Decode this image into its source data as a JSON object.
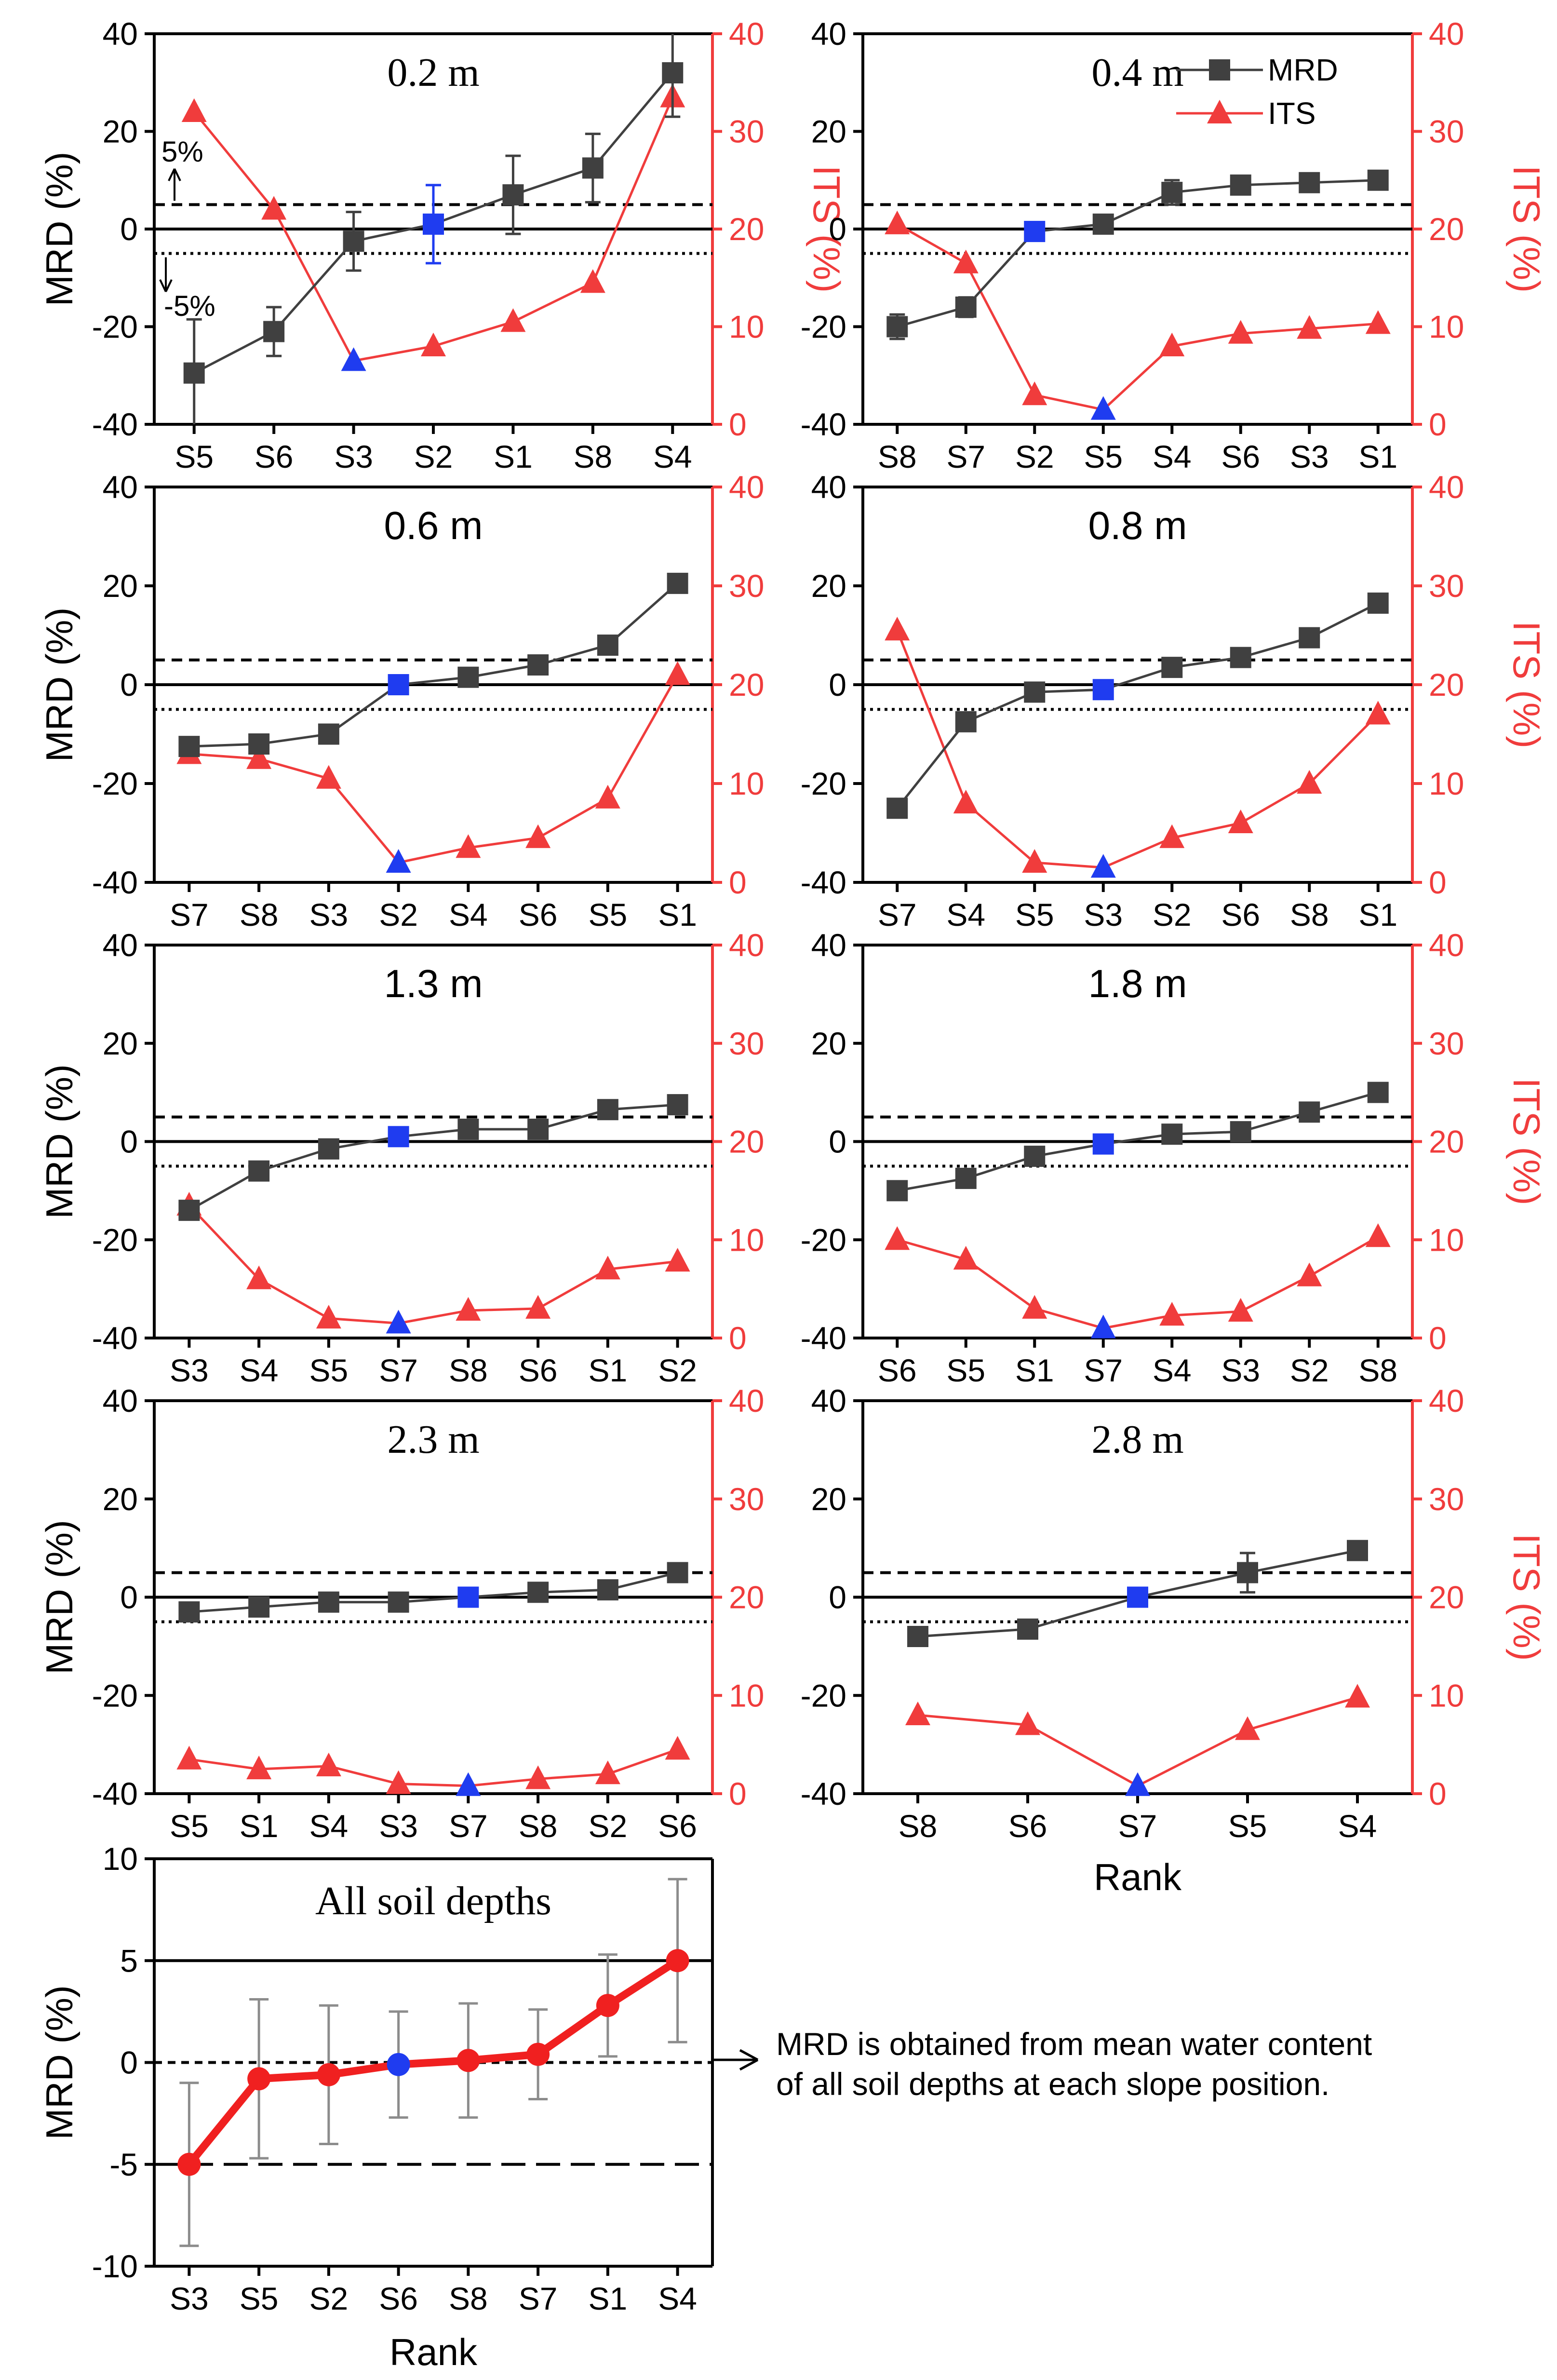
{
  "figure": {
    "legend": {
      "mrd_label": "MRD",
      "its_label": "ITS"
    },
    "annotations": {
      "upper_threshold": "5%",
      "lower_threshold": "-5%"
    },
    "note": {
      "line1": "MRD is obtained from mean water content",
      "line2": "of all soil depths at each slope position."
    }
  },
  "colors": {
    "mrd_line": "#404040",
    "its_line": "#f03c3c",
    "highlight": "#1f3cf0",
    "all_depths_line": "#f02020",
    "error_bar_gray": "#8c8c8c"
  },
  "chart_data": [
    {
      "type": "line",
      "title": "0.2 m",
      "title_style": "serif",
      "categories": [
        "S5",
        "S6",
        "S3",
        "S2",
        "S1",
        "S8",
        "S4"
      ],
      "highlight_index": 3,
      "its_highlight_index": 2,
      "ylabel": "MRD (%)",
      "y2label": "ITS (%)",
      "xlabel": "",
      "ylim": [
        -40,
        40
      ],
      "y2lim": [
        0,
        40
      ],
      "yticks": [
        "40",
        "20",
        "0",
        "-20",
        "-40"
      ],
      "y2ticks": [
        "40",
        "30",
        "20",
        "10",
        "0"
      ],
      "series": [
        {
          "name": "MRD",
          "values": [
            -29.5,
            -21,
            -2.5,
            1,
            7,
            12.5,
            32
          ],
          "errors": [
            11,
            5,
            6,
            8,
            8,
            7,
            9
          ]
        },
        {
          "name": "ITS",
          "values": [
            32,
            22,
            6.5,
            8,
            10.5,
            14.5,
            33.5
          ]
        }
      ],
      "thresholds": [
        5,
        -5
      ],
      "show_legend": false,
      "show_threshold_annotations": true
    },
    {
      "type": "line",
      "title": "0.4 m",
      "title_style": "serif",
      "categories": [
        "S8",
        "S7",
        "S2",
        "S5",
        "S4",
        "S6",
        "S3",
        "S1"
      ],
      "highlight_index": 2,
      "its_highlight_index": 3,
      "ylabel": "",
      "y2label": "ITS (%)",
      "xlabel": "",
      "ylim": [
        -40,
        40
      ],
      "y2lim": [
        0,
        40
      ],
      "yticks": [
        "40",
        "20",
        "0",
        "-20",
        "-40"
      ],
      "y2ticks": [
        "40",
        "30",
        "20",
        "10",
        "0"
      ],
      "series": [
        {
          "name": "MRD",
          "values": [
            -20,
            -16,
            -0.5,
            1,
            7.5,
            9,
            9.5,
            10
          ],
          "errors": [
            2.5,
            2,
            0,
            0,
            2.5,
            0,
            0,
            0
          ]
        },
        {
          "name": "ITS",
          "values": [
            20.5,
            16.5,
            3,
            1.5,
            8,
            9.3,
            9.8,
            10.3
          ]
        }
      ],
      "thresholds": [
        5,
        -5
      ],
      "show_legend": true,
      "show_threshold_annotations": false
    },
    {
      "type": "line",
      "title": "0.6 m",
      "title_style": "sans",
      "categories": [
        "S7",
        "S8",
        "S3",
        "S2",
        "S4",
        "S6",
        "S5",
        "S1"
      ],
      "highlight_index": 3,
      "its_highlight_index": 3,
      "ylabel": "MRD (%)",
      "y2label": "",
      "xlabel": "",
      "ylim": [
        -40,
        40
      ],
      "y2lim": [
        0,
        40
      ],
      "yticks": [
        "40",
        "20",
        "0",
        "-20",
        "-40"
      ],
      "y2ticks": [
        "40",
        "30",
        "20",
        "10",
        "0"
      ],
      "series": [
        {
          "name": "MRD",
          "values": [
            -12.5,
            -12,
            -10,
            0,
            1.5,
            4,
            8,
            20.5
          ],
          "errors": [
            1.5,
            0,
            0,
            0,
            0,
            0,
            0,
            0
          ]
        },
        {
          "name": "ITS",
          "values": [
            13,
            12.5,
            10.5,
            2,
            3.5,
            4.5,
            8.5,
            21
          ]
        }
      ],
      "thresholds": [
        5,
        -5
      ],
      "show_legend": false,
      "show_threshold_annotations": false
    },
    {
      "type": "line",
      "title": "0.8 m",
      "title_style": "sans",
      "categories": [
        "S7",
        "S4",
        "S5",
        "S3",
        "S2",
        "S6",
        "S8",
        "S1"
      ],
      "highlight_index": 3,
      "its_highlight_index": 3,
      "ylabel": "",
      "y2label": "ITS (%)",
      "xlabel": "",
      "ylim": [
        -40,
        40
      ],
      "y2lim": [
        0,
        40
      ],
      "yticks": [
        "40",
        "20",
        "0",
        "-20",
        "-40"
      ],
      "y2ticks": [
        "40",
        "30",
        "20",
        "10",
        "0"
      ],
      "series": [
        {
          "name": "MRD",
          "values": [
            -25,
            -7.5,
            -1.5,
            -1,
            3.5,
            5.5,
            9.5,
            16.5
          ],
          "errors": [
            0,
            0,
            0,
            0,
            0,
            0,
            0,
            0
          ]
        },
        {
          "name": "ITS",
          "values": [
            25.5,
            8,
            2,
            1.5,
            4.5,
            6,
            10,
            17
          ]
        }
      ],
      "thresholds": [
        5,
        -5
      ],
      "show_legend": false,
      "show_threshold_annotations": false
    },
    {
      "type": "line",
      "title": "1.3 m",
      "title_style": "sans",
      "categories": [
        "S3",
        "S4",
        "S5",
        "S7",
        "S8",
        "S6",
        "S1",
        "S2"
      ],
      "highlight_index": 3,
      "its_highlight_index": 3,
      "ylabel": "MRD (%)",
      "y2label": "",
      "xlabel": "",
      "ylim": [
        -40,
        40
      ],
      "y2lim": [
        0,
        40
      ],
      "yticks": [
        "40",
        "20",
        "0",
        "-20",
        "-40"
      ],
      "y2ticks": [
        "40",
        "30",
        "20",
        "10",
        "0"
      ],
      "series": [
        {
          "name": "MRD",
          "values": [
            -14,
            -6,
            -1.5,
            1,
            2.5,
            2.5,
            6.5,
            7.5
          ],
          "errors": [
            0,
            0,
            0,
            0,
            0,
            0,
            0,
            0
          ]
        },
        {
          "name": "ITS",
          "values": [
            13.5,
            6,
            2,
            1.5,
            2.8,
            3,
            7,
            7.8
          ]
        }
      ],
      "thresholds": [
        5,
        -5
      ],
      "show_legend": false,
      "show_threshold_annotations": false
    },
    {
      "type": "line",
      "title": "1.8 m",
      "title_style": "sans",
      "categories": [
        "S6",
        "S5",
        "S1",
        "S7",
        "S4",
        "S3",
        "S2",
        "S8"
      ],
      "highlight_index": 3,
      "its_highlight_index": 3,
      "ylabel": "",
      "y2label": "ITS (%)",
      "xlabel": "",
      "ylim": [
        -40,
        40
      ],
      "y2lim": [
        0,
        40
      ],
      "yticks": [
        "40",
        "20",
        "0",
        "-20",
        "-40"
      ],
      "y2ticks": [
        "40",
        "30",
        "20",
        "10",
        "0"
      ],
      "series": [
        {
          "name": "MRD",
          "values": [
            -10,
            -7.5,
            -3,
            -0.5,
            1.5,
            2,
            6,
            10
          ],
          "errors": [
            0,
            0,
            0,
            0,
            0,
            0,
            0,
            0
          ]
        },
        {
          "name": "ITS",
          "values": [
            10,
            8,
            3,
            1,
            2.3,
            2.7,
            6.3,
            10.3
          ]
        }
      ],
      "thresholds": [
        5,
        -5
      ],
      "show_legend": false,
      "show_threshold_annotations": false
    },
    {
      "type": "line",
      "title": "2.3 m",
      "title_style": "serif",
      "categories": [
        "S5",
        "S1",
        "S4",
        "S3",
        "S7",
        "S8",
        "S2",
        "S6"
      ],
      "highlight_index": 4,
      "its_highlight_index": 4,
      "ylabel": "MRD (%)",
      "y2label": "",
      "xlabel": "",
      "ylim": [
        -40,
        40
      ],
      "y2lim": [
        0,
        40
      ],
      "yticks": [
        "40",
        "20",
        "0",
        "-20",
        "-40"
      ],
      "y2ticks": [
        "40",
        "30",
        "20",
        "10",
        "0"
      ],
      "series": [
        {
          "name": "MRD",
          "values": [
            -3,
            -2,
            -1,
            -1,
            0,
            1,
            1.5,
            5
          ],
          "errors": [
            0,
            0,
            0,
            0,
            0,
            0,
            0,
            0
          ]
        },
        {
          "name": "ITS",
          "values": [
            3.5,
            2.5,
            2.8,
            1,
            0.8,
            1.5,
            2,
            4.5
          ]
        }
      ],
      "thresholds": [
        5,
        -5
      ],
      "show_legend": false,
      "show_threshold_annotations": false
    },
    {
      "type": "line",
      "title": "2.8 m",
      "title_style": "serif",
      "categories": [
        "S8",
        "S6",
        "S7",
        "S5",
        "S4"
      ],
      "highlight_index": 2,
      "its_highlight_index": 2,
      "ylabel": "",
      "y2label": "ITS (%)",
      "xlabel": "Rank",
      "ylim": [
        -40,
        40
      ],
      "y2lim": [
        0,
        40
      ],
      "yticks": [
        "40",
        "20",
        "0",
        "-20",
        "-40"
      ],
      "y2ticks": [
        "40",
        "30",
        "20",
        "10",
        "0"
      ],
      "series": [
        {
          "name": "MRD",
          "values": [
            -8,
            -6.5,
            0,
            5,
            9.5
          ],
          "errors": [
            0,
            0,
            0,
            4,
            0
          ]
        },
        {
          "name": "ITS",
          "values": [
            8,
            7,
            0.8,
            6.5,
            9.8
          ]
        }
      ],
      "thresholds": [
        5,
        -5
      ],
      "show_legend": false,
      "show_threshold_annotations": false
    },
    {
      "type": "line",
      "title": "All soil depths",
      "title_style": "serif",
      "categories": [
        "S3",
        "S5",
        "S2",
        "S6",
        "S8",
        "S7",
        "S1",
        "S4"
      ],
      "highlight_index": 3,
      "ylabel": "MRD (%)",
      "xlabel": "Rank",
      "ylim": [
        -10,
        10
      ],
      "yticks": [
        "10",
        "5",
        "0",
        "-5",
        "-10"
      ],
      "series": [
        {
          "name": "MRD",
          "values": [
            -5,
            -0.8,
            -0.6,
            -0.1,
            0.1,
            0.4,
            2.8,
            5
          ],
          "errors": [
            4,
            3.9,
            3.4,
            2.6,
            2.8,
            2.2,
            2.5,
            4
          ]
        }
      ],
      "reference_lines": {
        "solid": 5,
        "short_dash": 0,
        "long_dash": -5
      }
    }
  ]
}
